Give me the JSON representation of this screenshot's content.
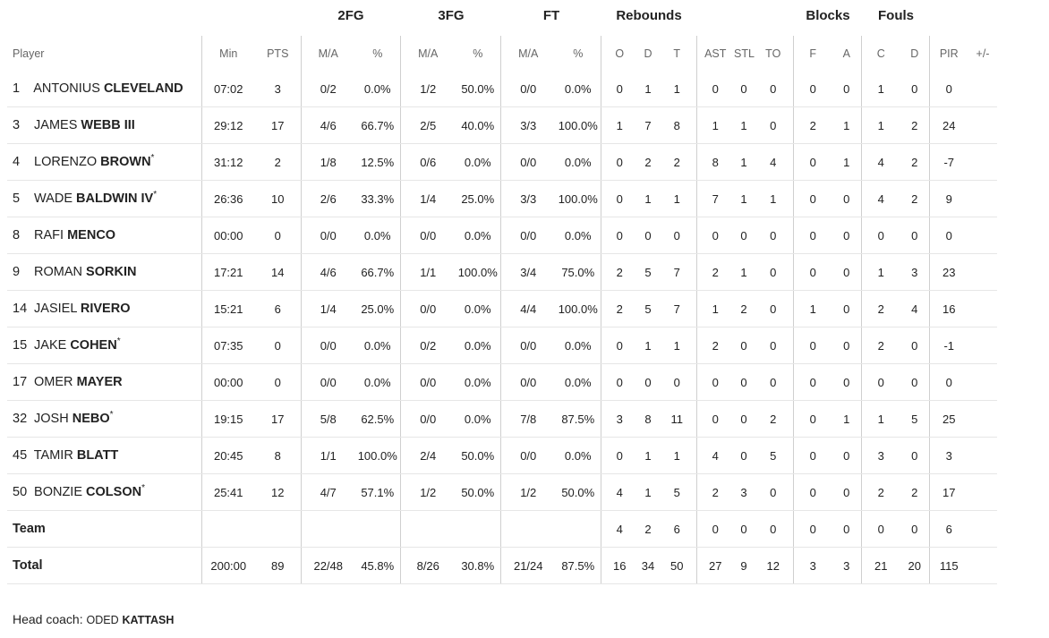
{
  "group_headers": {
    "fg2": "2FG",
    "fg3": "3FG",
    "ft": "FT",
    "rebounds": "Rebounds",
    "blocks": "Blocks",
    "fouls": "Fouls"
  },
  "columns": {
    "player": "Player",
    "min": "Min",
    "pts": "PTS",
    "fg2_ma": "M/A",
    "fg2_pct": "%",
    "fg3_ma": "M/A",
    "fg3_pct": "%",
    "ft_ma": "M/A",
    "ft_pct": "%",
    "reb_o": "O",
    "reb_d": "D",
    "reb_t": "T",
    "ast": "AST",
    "stl": "STL",
    "to": "TO",
    "blk_f": "F",
    "blk_a": "A",
    "foul_c": "C",
    "foul_d": "D",
    "pir": "PIR",
    "plusminus": "+/-"
  },
  "players": [
    {
      "num": "1",
      "first": "ANTONIUS",
      "last": "CLEVELAND",
      "starter": "",
      "min": "07:02",
      "pts": "3",
      "fg2_ma": "0/2",
      "fg2_pct": "0.0%",
      "fg3_ma": "1/2",
      "fg3_pct": "50.0%",
      "ft_ma": "0/0",
      "ft_pct": "0.0%",
      "reb_o": "0",
      "reb_d": "1",
      "reb_t": "1",
      "ast": "0",
      "stl": "0",
      "to": "0",
      "blk_f": "0",
      "blk_a": "0",
      "foul_c": "1",
      "foul_d": "0",
      "pir": "0",
      "plusminus": ""
    },
    {
      "num": "3",
      "first": "JAMES",
      "last": "WEBB III",
      "starter": "",
      "min": "29:12",
      "pts": "17",
      "fg2_ma": "4/6",
      "fg2_pct": "66.7%",
      "fg3_ma": "2/5",
      "fg3_pct": "40.0%",
      "ft_ma": "3/3",
      "ft_pct": "100.0%",
      "reb_o": "1",
      "reb_d": "7",
      "reb_t": "8",
      "ast": "1",
      "stl": "1",
      "to": "0",
      "blk_f": "2",
      "blk_a": "1",
      "foul_c": "1",
      "foul_d": "2",
      "pir": "24",
      "plusminus": ""
    },
    {
      "num": "4",
      "first": "LORENZO",
      "last": "BROWN",
      "starter": "*",
      "min": "31:12",
      "pts": "2",
      "fg2_ma": "1/8",
      "fg2_pct": "12.5%",
      "fg3_ma": "0/6",
      "fg3_pct": "0.0%",
      "ft_ma": "0/0",
      "ft_pct": "0.0%",
      "reb_o": "0",
      "reb_d": "2",
      "reb_t": "2",
      "ast": "8",
      "stl": "1",
      "to": "4",
      "blk_f": "0",
      "blk_a": "1",
      "foul_c": "4",
      "foul_d": "2",
      "pir": "-7",
      "plusminus": ""
    },
    {
      "num": "5",
      "first": "WADE",
      "last": "BALDWIN IV",
      "starter": "*",
      "min": "26:36",
      "pts": "10",
      "fg2_ma": "2/6",
      "fg2_pct": "33.3%",
      "fg3_ma": "1/4",
      "fg3_pct": "25.0%",
      "ft_ma": "3/3",
      "ft_pct": "100.0%",
      "reb_o": "0",
      "reb_d": "1",
      "reb_t": "1",
      "ast": "7",
      "stl": "1",
      "to": "1",
      "blk_f": "0",
      "blk_a": "0",
      "foul_c": "4",
      "foul_d": "2",
      "pir": "9",
      "plusminus": ""
    },
    {
      "num": "8",
      "first": "RAFI",
      "last": "MENCO",
      "starter": "",
      "min": "00:00",
      "pts": "0",
      "fg2_ma": "0/0",
      "fg2_pct": "0.0%",
      "fg3_ma": "0/0",
      "fg3_pct": "0.0%",
      "ft_ma": "0/0",
      "ft_pct": "0.0%",
      "reb_o": "0",
      "reb_d": "0",
      "reb_t": "0",
      "ast": "0",
      "stl": "0",
      "to": "0",
      "blk_f": "0",
      "blk_a": "0",
      "foul_c": "0",
      "foul_d": "0",
      "pir": "0",
      "plusminus": ""
    },
    {
      "num": "9",
      "first": "ROMAN",
      "last": "SORKIN",
      "starter": "",
      "min": "17:21",
      "pts": "14",
      "fg2_ma": "4/6",
      "fg2_pct": "66.7%",
      "fg3_ma": "1/1",
      "fg3_pct": "100.0%",
      "ft_ma": "3/4",
      "ft_pct": "75.0%",
      "reb_o": "2",
      "reb_d": "5",
      "reb_t": "7",
      "ast": "2",
      "stl": "1",
      "to": "0",
      "blk_f": "0",
      "blk_a": "0",
      "foul_c": "1",
      "foul_d": "3",
      "pir": "23",
      "plusminus": ""
    },
    {
      "num": "14",
      "first": "JASIEL",
      "last": "RIVERO",
      "starter": "",
      "min": "15:21",
      "pts": "6",
      "fg2_ma": "1/4",
      "fg2_pct": "25.0%",
      "fg3_ma": "0/0",
      "fg3_pct": "0.0%",
      "ft_ma": "4/4",
      "ft_pct": "100.0%",
      "reb_o": "2",
      "reb_d": "5",
      "reb_t": "7",
      "ast": "1",
      "stl": "2",
      "to": "0",
      "blk_f": "1",
      "blk_a": "0",
      "foul_c": "2",
      "foul_d": "4",
      "pir": "16",
      "plusminus": ""
    },
    {
      "num": "15",
      "first": "JAKE",
      "last": "COHEN",
      "starter": "*",
      "min": "07:35",
      "pts": "0",
      "fg2_ma": "0/0",
      "fg2_pct": "0.0%",
      "fg3_ma": "0/2",
      "fg3_pct": "0.0%",
      "ft_ma": "0/0",
      "ft_pct": "0.0%",
      "reb_o": "0",
      "reb_d": "1",
      "reb_t": "1",
      "ast": "2",
      "stl": "0",
      "to": "0",
      "blk_f": "0",
      "blk_a": "0",
      "foul_c": "2",
      "foul_d": "0",
      "pir": "-1",
      "plusminus": ""
    },
    {
      "num": "17",
      "first": "OMER",
      "last": "MAYER",
      "starter": "",
      "min": "00:00",
      "pts": "0",
      "fg2_ma": "0/0",
      "fg2_pct": "0.0%",
      "fg3_ma": "0/0",
      "fg3_pct": "0.0%",
      "ft_ma": "0/0",
      "ft_pct": "0.0%",
      "reb_o": "0",
      "reb_d": "0",
      "reb_t": "0",
      "ast": "0",
      "stl": "0",
      "to": "0",
      "blk_f": "0",
      "blk_a": "0",
      "foul_c": "0",
      "foul_d": "0",
      "pir": "0",
      "plusminus": ""
    },
    {
      "num": "32",
      "first": "JOSH",
      "last": "NEBO",
      "starter": "*",
      "min": "19:15",
      "pts": "17",
      "fg2_ma": "5/8",
      "fg2_pct": "62.5%",
      "fg3_ma": "0/0",
      "fg3_pct": "0.0%",
      "ft_ma": "7/8",
      "ft_pct": "87.5%",
      "reb_o": "3",
      "reb_d": "8",
      "reb_t": "11",
      "ast": "0",
      "stl": "0",
      "to": "2",
      "blk_f": "0",
      "blk_a": "1",
      "foul_c": "1",
      "foul_d": "5",
      "pir": "25",
      "plusminus": ""
    },
    {
      "num": "45",
      "first": "TAMIR",
      "last": "BLATT",
      "starter": "",
      "min": "20:45",
      "pts": "8",
      "fg2_ma": "1/1",
      "fg2_pct": "100.0%",
      "fg3_ma": "2/4",
      "fg3_pct": "50.0%",
      "ft_ma": "0/0",
      "ft_pct": "0.0%",
      "reb_o": "0",
      "reb_d": "1",
      "reb_t": "1",
      "ast": "4",
      "stl": "0",
      "to": "5",
      "blk_f": "0",
      "blk_a": "0",
      "foul_c": "3",
      "foul_d": "0",
      "pir": "3",
      "plusminus": ""
    },
    {
      "num": "50",
      "first": "BONZIE",
      "last": "COLSON",
      "starter": "*",
      "min": "25:41",
      "pts": "12",
      "fg2_ma": "4/7",
      "fg2_pct": "57.1%",
      "fg3_ma": "1/2",
      "fg3_pct": "50.0%",
      "ft_ma": "1/2",
      "ft_pct": "50.0%",
      "reb_o": "4",
      "reb_d": "1",
      "reb_t": "5",
      "ast": "2",
      "stl": "3",
      "to": "0",
      "blk_f": "0",
      "blk_a": "0",
      "foul_c": "2",
      "foul_d": "2",
      "pir": "17",
      "plusminus": ""
    }
  ],
  "team_row": {
    "label": "Team",
    "min": "",
    "pts": "",
    "fg2_ma": "",
    "fg2_pct": "",
    "fg3_ma": "",
    "fg3_pct": "",
    "ft_ma": "",
    "ft_pct": "",
    "reb_o": "4",
    "reb_d": "2",
    "reb_t": "6",
    "ast": "0",
    "stl": "0",
    "to": "0",
    "blk_f": "0",
    "blk_a": "0",
    "foul_c": "0",
    "foul_d": "0",
    "pir": "6",
    "plusminus": ""
  },
  "total_row": {
    "label": "Total",
    "min": "200:00",
    "pts": "89",
    "fg2_ma": "22/48",
    "fg2_pct": "45.8%",
    "fg3_ma": "8/26",
    "fg3_pct": "30.8%",
    "ft_ma": "21/24",
    "ft_pct": "87.5%",
    "reb_o": "16",
    "reb_d": "34",
    "reb_t": "50",
    "ast": "27",
    "stl": "9",
    "to": "12",
    "blk_f": "3",
    "blk_a": "3",
    "foul_c": "21",
    "foul_d": "20",
    "pir": "115",
    "plusminus": ""
  },
  "coach": {
    "label": "Head coach:",
    "first": "ODED",
    "last": "KATTASH"
  }
}
